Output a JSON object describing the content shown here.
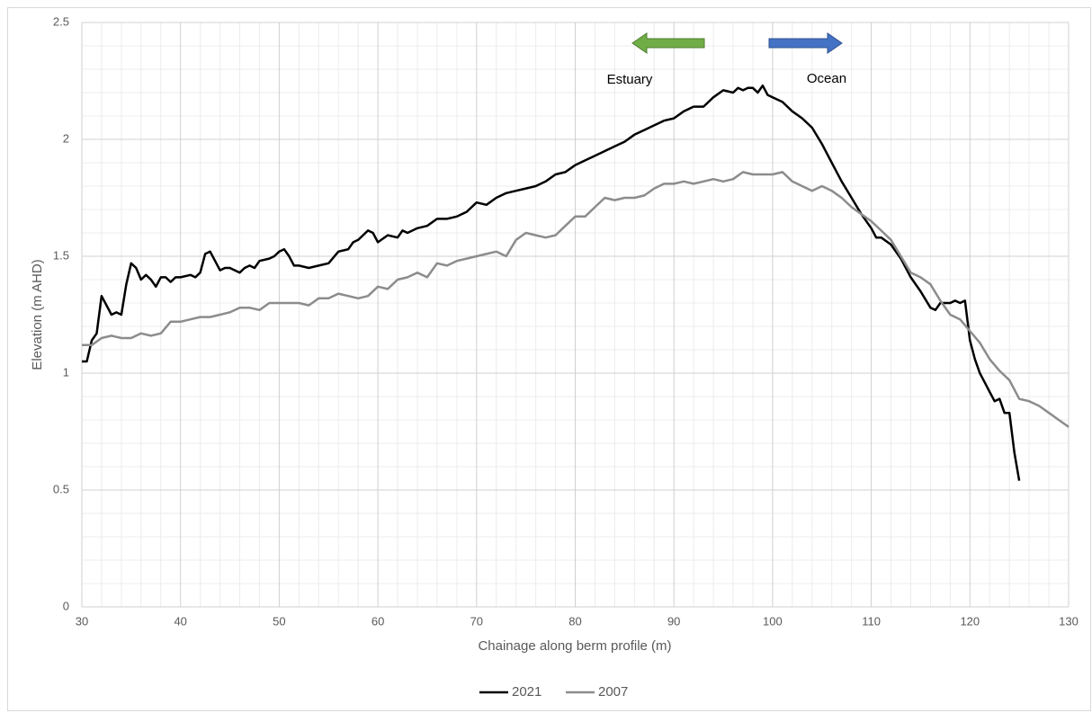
{
  "chart_data": {
    "type": "line",
    "x_label": "Chainage along berm profile (m)",
    "y_label": "Elevation (m AHD)",
    "annotations": [
      "Estuary",
      "Ocean"
    ],
    "xlim": [
      30,
      130
    ],
    "xticks": [
      30,
      40,
      50,
      60,
      70,
      80,
      90,
      100,
      110,
      120,
      130
    ],
    "ylim": [
      0,
      2.5
    ],
    "yticks": [
      0,
      0.5,
      1,
      1.5,
      2,
      2.5
    ],
    "grid": true,
    "legend": "bottom",
    "series": [
      {
        "name": "2021",
        "color": "#000000",
        "x": [
          30,
          30.5,
          31,
          31.5,
          32,
          32.5,
          33,
          33.5,
          34,
          34.5,
          35,
          35.5,
          36,
          36.5,
          37,
          37.5,
          38,
          38.5,
          39,
          39.5,
          40,
          41,
          41.5,
          42,
          42.5,
          43,
          43.5,
          44,
          44.5,
          45,
          46,
          46.5,
          47,
          47.5,
          48,
          49,
          49.5,
          50,
          50.5,
          51,
          51.5,
          52,
          53,
          54,
          55,
          56,
          57,
          57.5,
          58,
          59,
          59.5,
          60,
          61,
          62,
          62.5,
          63,
          64,
          65,
          66,
          67,
          68,
          69,
          70,
          71,
          72,
          73,
          74,
          75,
          76,
          77,
          78,
          79,
          80,
          81,
          82,
          83,
          84,
          85,
          86,
          87,
          88,
          89,
          90,
          91,
          92,
          93,
          94,
          95,
          96,
          96.5,
          97,
          97.5,
          98,
          98.5,
          99,
          99.5,
          100,
          101,
          102,
          103,
          104,
          105,
          106,
          107,
          108,
          109,
          110,
          110.5,
          111,
          112,
          113,
          114,
          115,
          116,
          116.5,
          117,
          118,
          118.5,
          119,
          119.5,
          120,
          120.5,
          121,
          121.5,
          122,
          122.5,
          123,
          123.5,
          124,
          124.5,
          125
        ],
        "values": [
          1.05,
          1.05,
          1.14,
          1.17,
          1.33,
          1.29,
          1.25,
          1.26,
          1.25,
          1.38,
          1.47,
          1.45,
          1.4,
          1.42,
          1.4,
          1.37,
          1.41,
          1.41,
          1.39,
          1.41,
          1.41,
          1.42,
          1.41,
          1.43,
          1.51,
          1.52,
          1.48,
          1.44,
          1.45,
          1.45,
          1.43,
          1.45,
          1.46,
          1.45,
          1.48,
          1.49,
          1.5,
          1.52,
          1.53,
          1.5,
          1.46,
          1.46,
          1.45,
          1.46,
          1.47,
          1.52,
          1.53,
          1.56,
          1.57,
          1.61,
          1.6,
          1.56,
          1.59,
          1.58,
          1.61,
          1.6,
          1.62,
          1.63,
          1.66,
          1.66,
          1.67,
          1.69,
          1.73,
          1.72,
          1.75,
          1.77,
          1.78,
          1.79,
          1.8,
          1.82,
          1.85,
          1.86,
          1.89,
          1.91,
          1.93,
          1.95,
          1.97,
          1.99,
          2.02,
          2.04,
          2.06,
          2.08,
          2.09,
          2.12,
          2.14,
          2.14,
          2.18,
          2.21,
          2.2,
          2.22,
          2.21,
          2.22,
          2.22,
          2.2,
          2.23,
          2.19,
          2.18,
          2.16,
          2.12,
          2.09,
          2.05,
          1.98,
          1.9,
          1.82,
          1.75,
          1.68,
          1.62,
          1.58,
          1.58,
          1.55,
          1.49,
          1.41,
          1.35,
          1.28,
          1.27,
          1.3,
          1.3,
          1.31,
          1.3,
          1.31,
          1.14,
          1.06,
          1.0,
          0.96,
          0.92,
          0.88,
          0.89,
          0.83,
          0.83,
          0.66,
          0.54
        ]
      },
      {
        "name": "2007",
        "color": "#8c8c8c",
        "x": [
          30,
          31,
          32,
          33,
          34,
          35,
          36,
          37,
          38,
          39,
          40,
          41,
          42,
          43,
          44,
          45,
          46,
          47,
          48,
          49,
          50,
          51,
          52,
          53,
          54,
          55,
          56,
          57,
          58,
          59,
          60,
          61,
          62,
          63,
          64,
          65,
          66,
          67,
          68,
          69,
          70,
          71,
          72,
          73,
          74,
          75,
          76,
          77,
          78,
          79,
          80,
          81,
          82,
          83,
          84,
          85,
          86,
          87,
          88,
          89,
          90,
          91,
          92,
          93,
          94,
          95,
          96,
          97,
          98,
          99,
          100,
          101,
          102,
          103,
          104,
          105,
          106,
          107,
          108,
          109,
          110,
          111,
          112,
          113,
          114,
          115,
          116,
          117,
          118,
          119,
          120,
          121,
          122,
          123,
          124,
          125,
          126,
          127,
          128,
          129,
          130
        ],
        "values": [
          1.12,
          1.12,
          1.15,
          1.16,
          1.15,
          1.15,
          1.17,
          1.16,
          1.17,
          1.22,
          1.22,
          1.23,
          1.24,
          1.24,
          1.25,
          1.26,
          1.28,
          1.28,
          1.27,
          1.3,
          1.3,
          1.3,
          1.3,
          1.29,
          1.32,
          1.32,
          1.34,
          1.33,
          1.32,
          1.33,
          1.37,
          1.36,
          1.4,
          1.41,
          1.43,
          1.41,
          1.47,
          1.46,
          1.48,
          1.49,
          1.5,
          1.51,
          1.52,
          1.5,
          1.57,
          1.6,
          1.59,
          1.58,
          1.59,
          1.63,
          1.67,
          1.67,
          1.71,
          1.75,
          1.74,
          1.75,
          1.75,
          1.76,
          1.79,
          1.81,
          1.81,
          1.82,
          1.81,
          1.82,
          1.83,
          1.82,
          1.83,
          1.86,
          1.85,
          1.85,
          1.85,
          1.86,
          1.82,
          1.8,
          1.78,
          1.8,
          1.78,
          1.75,
          1.71,
          1.68,
          1.65,
          1.61,
          1.57,
          1.5,
          1.43,
          1.41,
          1.38,
          1.31,
          1.25,
          1.23,
          1.18,
          1.13,
          1.06,
          1.01,
          0.97,
          0.89,
          0.88,
          0.86,
          0.83,
          0.8,
          0.77
        ]
      }
    ]
  }
}
